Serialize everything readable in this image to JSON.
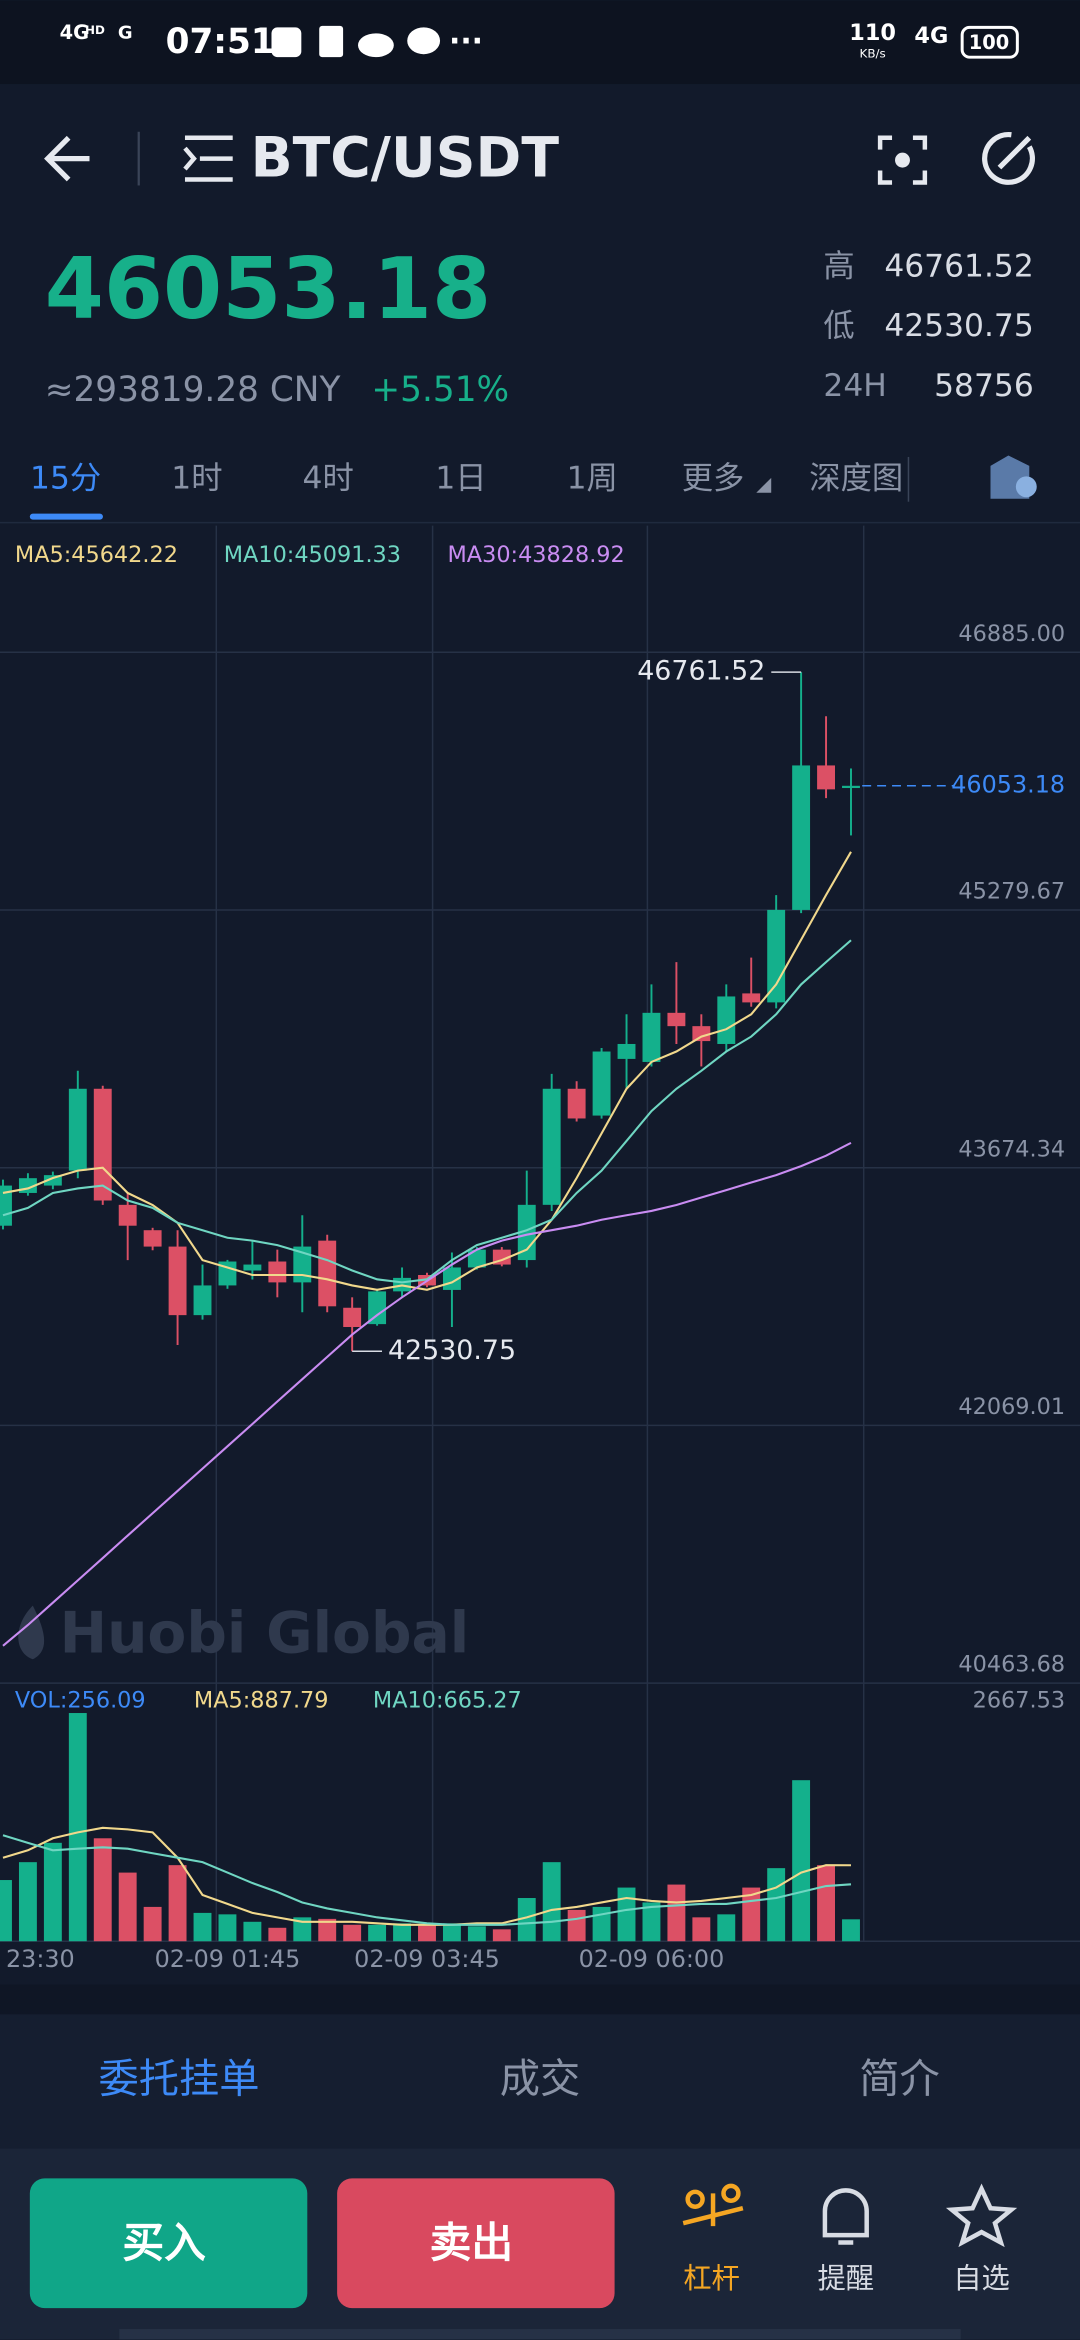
{
  "status_bar": {
    "network1": "4G",
    "hd": "HD",
    "network2": "G",
    "time": "07:51",
    "speed": "110",
    "speed_unit": "KB/s",
    "network3": "4G",
    "battery": "100"
  },
  "header": {
    "pair": "BTC/USDT"
  },
  "ticker": {
    "price": "46053.18",
    "cny": "≈293819.28 CNY",
    "change": "+5.51%",
    "stats": [
      {
        "label": "高",
        "value": "46761.52"
      },
      {
        "label": "低",
        "value": "42530.75"
      },
      {
        "label": "24H",
        "value": "58756"
      }
    ]
  },
  "tabs": [
    "15分",
    "1时",
    "4时",
    "1日",
    "1周",
    "更多",
    "深度图"
  ],
  "chart_data": {
    "type": "candlestick",
    "legend": [
      "MA5:45642.22",
      "MA10:45091.33",
      "MA30:43828.92"
    ],
    "vol_legend": [
      "VOL:256.09",
      "MA5:887.79",
      "MA10:665.27"
    ],
    "watermark": "Huobi Global",
    "up_color": "#14b08c",
    "down_color": "#dc5065",
    "ma_colors": [
      "#f1d88c",
      "#6fd6c2",
      "#c98cf2"
    ],
    "ylim": [
      40463.68,
      47674
    ],
    "yticks": [
      {
        "value": 46885,
        "label": "46885.00"
      },
      45279.67,
      43674.34,
      42069.01,
      40463.68
    ],
    "vol_ylim": [
      0,
      2667.53
    ],
    "vol_yticks": [
      2667.53
    ],
    "categories": [
      "23:30",
      null,
      null,
      null,
      null,
      null,
      null,
      null,
      null,
      "02-09 01:45",
      null,
      null,
      null,
      null,
      null,
      null,
      null,
      "02-09 03:45",
      null,
      null,
      null,
      null,
      null,
      null,
      null,
      null,
      "02-09 06:00",
      null,
      null,
      null,
      null,
      null,
      null,
      null,
      null
    ],
    "ohlc": [
      [
        43313,
        43600,
        43290,
        43563
      ],
      [
        43517,
        43640,
        43500,
        43609
      ],
      [
        43563,
        43650,
        43540,
        43628
      ],
      [
        43656,
        44278,
        43609,
        44166
      ],
      [
        44166,
        44185,
        43443,
        43470
      ],
      [
        43443,
        43517,
        43099,
        43313
      ],
      [
        43285,
        43300,
        43160,
        43183
      ],
      [
        43183,
        43285,
        42570,
        42756
      ],
      [
        42756,
        43071,
        42728,
        42941
      ],
      [
        42941,
        43100,
        42920,
        43090
      ],
      [
        43034,
        43220,
        42978,
        43071
      ],
      [
        43090,
        43164,
        42867,
        42960
      ],
      [
        42960,
        43378,
        42774,
        43183
      ],
      [
        43220,
        43257,
        42774,
        42811
      ],
      [
        42802,
        42867,
        42530.75,
        42682
      ],
      [
        42700,
        42920,
        42690,
        42904
      ],
      [
        42904,
        43053,
        42867,
        42988
      ],
      [
        43006,
        43020,
        42930,
        42941
      ],
      [
        42913,
        43146,
        42682,
        43053
      ],
      [
        43053,
        43180,
        43040,
        43164
      ],
      [
        43164,
        43180,
        43060,
        43071
      ],
      [
        43099,
        43656,
        43053,
        43443
      ],
      [
        43443,
        44259,
        43405,
        44166
      ],
      [
        44166,
        44213,
        43962,
        43981
      ],
      [
        43999,
        44420,
        43980,
        44398
      ],
      [
        44352,
        44630,
        44166,
        44445
      ],
      [
        44333,
        44816,
        44305,
        44639
      ],
      [
        44639,
        44955,
        44445,
        44556
      ],
      [
        44556,
        44630,
        44305,
        44463
      ],
      [
        44445,
        44816,
        44398,
        44741
      ],
      [
        44760,
        44983,
        44677,
        44704
      ],
      [
        44704,
        45372,
        44667,
        45280
      ],
      [
        45280,
        46761.52,
        45260,
        46180
      ],
      [
        46180,
        46486,
        45976,
        46031
      ],
      [
        46040,
        46161,
        45744,
        46053.18
      ]
    ],
    "ma5": [
      43517,
      43545,
      43610,
      43656,
      43674,
      43517,
      43442,
      43331,
      43099,
      43053,
      43006,
      43006,
      43006,
      42979,
      42941,
      42914,
      42941,
      42914,
      42960,
      43053,
      43099,
      43164,
      43350,
      43610,
      43888,
      44166,
      44333,
      44398,
      44491,
      44537,
      44630,
      44816,
      45094,
      45373,
      45642
    ],
    "ma10": [
      43378,
      43424,
      43517,
      43545,
      43563,
      43470,
      43424,
      43331,
      43285,
      43238,
      43220,
      43192,
      43146,
      43099,
      43034,
      42979,
      42960,
      42979,
      43099,
      43192,
      43238,
      43285,
      43350,
      43517,
      43656,
      43841,
      44027,
      44166,
      44278,
      44398,
      44491,
      44630,
      44816,
      44955,
      45091
    ],
    "ma30": [
      40696,
      40826,
      40965,
      41104,
      41243,
      41383,
      41522,
      41661,
      41800,
      41939,
      42078,
      42218,
      42357,
      42496,
      42635,
      42756,
      42867,
      42969,
      43071,
      43164,
      43220,
      43257,
      43285,
      43313,
      43350,
      43378,
      43405,
      43442,
      43489,
      43535,
      43582,
      43628,
      43684,
      43749,
      43829
    ],
    "volume": [
      715,
      924,
      1150,
      2667,
      1203,
      802,
      401,
      889,
      331,
      314,
      227,
      157,
      279,
      261,
      192,
      192,
      209,
      192,
      209,
      174,
      139,
      505,
      924,
      366,
      401,
      627,
      453,
      662,
      279,
      314,
      627,
      854,
      1882,
      889,
      256.09
    ],
    "vol_ma5": [
      976,
      1063,
      1203,
      1272,
      1325,
      1307,
      1272,
      976,
      540,
      436,
      331,
      279,
      227,
      227,
      227,
      209,
      192,
      192,
      192,
      209,
      209,
      279,
      366,
      401,
      453,
      505,
      471,
      453,
      471,
      505,
      540,
      627,
      802,
      889,
      888
    ],
    "vol_ma10": [
      1238,
      1150,
      1063,
      1081,
      1098,
      1081,
      1028,
      976,
      924,
      802,
      680,
      575,
      453,
      383,
      331,
      279,
      244,
      209,
      192,
      192,
      192,
      209,
      227,
      261,
      314,
      366,
      401,
      418,
      436,
      436,
      471,
      505,
      575,
      645,
      665
    ]
  },
  "bottom_tabs": [
    "委托挂单",
    "成交",
    "简介"
  ],
  "buttons": {
    "buy": "买入",
    "sell": "卖出"
  },
  "nav": [
    "杠杆",
    "提醒",
    "自选"
  ]
}
